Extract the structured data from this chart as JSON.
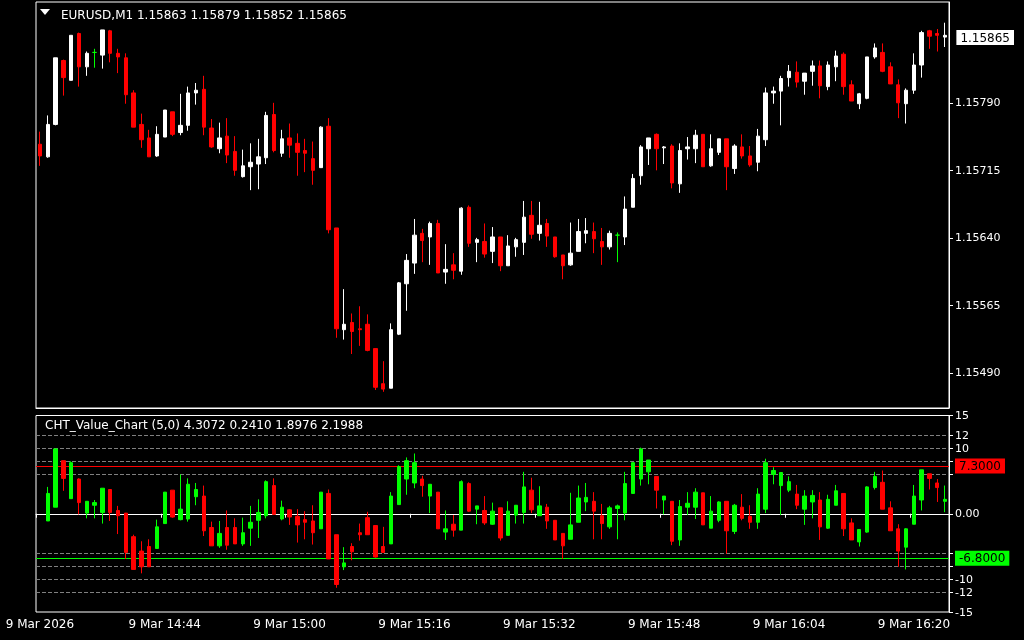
{
  "chart_data": [
    {
      "type": "candlestick",
      "title": "EURUSD,M1 1.15863 1.15879 1.15852 1.15865",
      "categories": [
        null,
        null,
        null,
        null,
        null,
        null,
        null,
        null,
        null,
        null,
        null,
        null,
        null,
        null,
        null,
        null,
        null,
        null,
        null,
        null,
        null,
        null,
        null,
        null,
        null,
        null,
        null,
        null,
        null,
        null,
        null,
        null,
        null,
        null,
        null,
        null,
        null,
        null,
        null,
        null,
        null,
        null,
        null,
        null,
        null,
        null,
        null,
        null,
        null,
        null,
        null,
        null,
        null,
        null,
        null,
        null,
        null,
        null,
        null,
        null,
        null,
        null,
        null,
        null,
        null,
        null,
        null,
        null,
        null,
        null,
        null,
        null,
        null,
        null,
        null,
        null,
        null,
        null,
        null,
        null,
        null,
        null,
        null,
        null,
        null,
        null,
        null,
        null,
        null,
        null,
        null,
        null,
        null,
        null,
        null,
        null,
        null,
        null,
        null,
        null,
        null,
        null,
        null,
        null,
        null,
        null,
        null,
        null,
        null,
        null,
        null,
        null,
        null,
        null,
        null,
        null,
        null
      ],
      "ohlc": [
        [
          1.15744,
          1.15758,
          1.1572,
          1.15731
        ],
        [
          1.1573,
          1.15776,
          1.15729,
          1.15766
        ],
        [
          1.15766,
          1.1584,
          1.15765,
          1.1584
        ],
        [
          1.15837,
          1.15838,
          1.15798,
          1.15818
        ],
        [
          1.15815,
          1.15865,
          1.15815,
          1.15865
        ],
        [
          1.15867,
          1.15868,
          1.15808,
          1.1583
        ],
        [
          1.1583,
          1.15847,
          1.1582,
          1.15845
        ],
        [
          1.15846,
          1.1585,
          1.15829,
          1.15846
        ],
        [
          1.15843,
          1.15871,
          1.15828,
          1.15871
        ],
        [
          1.1587,
          1.15871,
          1.15835,
          1.15845
        ],
        [
          1.15845,
          1.1585,
          1.15823,
          1.15841
        ],
        [
          1.1584,
          1.15845,
          1.15789,
          1.15799
        ],
        [
          1.15801,
          1.15804,
          1.15763,
          1.15763
        ],
        [
          1.15766,
          1.15778,
          1.1574,
          1.15749
        ],
        [
          1.15751,
          1.1576,
          1.1573,
          1.1573
        ],
        [
          1.15731,
          1.15764,
          1.1573,
          1.15755
        ],
        [
          1.15752,
          1.15782,
          1.15752,
          1.15782
        ],
        [
          1.1578,
          1.1578,
          1.15753,
          1.15755
        ],
        [
          1.15757,
          1.158,
          1.15754,
          1.15765
        ],
        [
          1.15765,
          1.15808,
          1.15759,
          1.15801
        ],
        [
          1.15801,
          1.15812,
          1.15788,
          1.15804
        ],
        [
          1.15805,
          1.1582,
          1.15754,
          1.15763
        ],
        [
          1.15762,
          1.15772,
          1.1574,
          1.15741
        ],
        [
          1.15739,
          1.15768,
          1.15734,
          1.15751
        ],
        [
          1.15753,
          1.15773,
          1.15723,
          1.15732
        ],
        [
          1.15736,
          1.15753,
          1.15709,
          1.15715
        ],
        [
          1.15708,
          1.15738,
          1.15707,
          1.1572
        ],
        [
          1.15719,
          1.15745,
          1.15693,
          1.15724
        ],
        [
          1.15722,
          1.1575,
          1.15694,
          1.1573
        ],
        [
          1.15729,
          1.1578,
          1.15722,
          1.15776
        ],
        [
          1.15777,
          1.1579,
          1.15735,
          1.15737
        ],
        [
          1.15734,
          1.1576,
          1.1573,
          1.1575
        ],
        [
          1.15751,
          1.15767,
          1.15729,
          1.15743
        ],
        [
          1.15745,
          1.15756,
          1.15709,
          1.15735
        ],
        [
          1.15737,
          1.1575,
          1.15713,
          1.15734
        ],
        [
          1.15728,
          1.15747,
          1.15699,
          1.15715
        ],
        [
          1.15718,
          1.15764,
          1.15718,
          1.15763
        ],
        [
          1.15764,
          1.15773,
          1.15645,
          1.15649
        ],
        [
          1.15651,
          1.15651,
          1.15529,
          1.15539
        ],
        [
          1.15538,
          1.15583,
          1.15527,
          1.15544
        ],
        [
          1.15546,
          1.15556,
          1.15511,
          1.15536
        ],
        [
          1.15539,
          1.15564,
          1.1552,
          1.15538
        ],
        [
          1.15544,
          1.15555,
          1.15514,
          1.15515
        ],
        [
          1.15517,
          1.15517,
          1.15471,
          1.15474
        ],
        [
          1.15478,
          1.15503,
          1.15469,
          1.15472
        ],
        [
          1.15473,
          1.15545,
          1.15473,
          1.15538
        ],
        [
          1.15533,
          1.15591,
          1.15532,
          1.1559
        ],
        [
          1.15589,
          1.15622,
          1.15559,
          1.15615
        ],
        [
          1.15612,
          1.15661,
          1.156,
          1.15643
        ],
        [
          1.15645,
          1.1565,
          1.15613,
          1.15637
        ],
        [
          1.15641,
          1.15658,
          1.1561,
          1.15656
        ],
        [
          1.15656,
          1.1566,
          1.15601,
          1.15601
        ],
        [
          1.15602,
          1.15633,
          1.15589,
          1.15605
        ],
        [
          1.1561,
          1.15623,
          1.15594,
          1.15604
        ],
        [
          1.15603,
          1.15674,
          1.15599,
          1.15673
        ],
        [
          1.15674,
          1.15676,
          1.1563,
          1.15634
        ],
        [
          1.15635,
          1.1564,
          1.15613,
          1.15638
        ],
        [
          1.15636,
          1.15656,
          1.15618,
          1.15622
        ],
        [
          1.15625,
          1.15652,
          1.15612,
          1.15641
        ],
        [
          1.15641,
          1.15641,
          1.15603,
          1.15609
        ],
        [
          1.15609,
          1.15643,
          1.15609,
          1.15631
        ],
        [
          1.1563,
          1.1564,
          1.15619,
          1.15638
        ],
        [
          1.15635,
          1.15681,
          1.15621,
          1.15663
        ],
        [
          1.15665,
          1.15681,
          1.15639,
          1.15644
        ],
        [
          1.15645,
          1.1568,
          1.15637,
          1.15654
        ],
        [
          1.15656,
          1.15661,
          1.1563,
          1.15642
        ],
        [
          1.15641,
          1.15641,
          1.15618,
          1.15619
        ],
        [
          1.15621,
          1.15621,
          1.15594,
          1.15609
        ],
        [
          1.1561,
          1.15657,
          1.15609,
          1.15623
        ],
        [
          1.15625,
          1.15661,
          1.15625,
          1.15647
        ],
        [
          1.15645,
          1.15662,
          1.15634,
          1.15648
        ],
        [
          1.15647,
          1.15657,
          1.15623,
          1.15639
        ],
        [
          1.15636,
          1.15651,
          1.1561,
          1.1563
        ],
        [
          1.1563,
          1.15648,
          1.15627,
          1.15645
        ],
        [
          1.15643,
          1.15646,
          1.15613,
          1.15643
        ],
        [
          1.15641,
          1.15686,
          1.15632,
          1.15672
        ],
        [
          1.15674,
          1.15711,
          1.15674,
          1.15706
        ],
        [
          1.15709,
          1.15743,
          1.15699,
          1.15741
        ],
        [
          1.15739,
          1.15751,
          1.15721,
          1.15751
        ],
        [
          1.15755,
          1.15756,
          1.15715,
          1.15739
        ],
        [
          1.1574,
          1.15742,
          1.15722,
          1.15741
        ],
        [
          1.15742,
          1.15744,
          1.15695,
          1.15701
        ],
        [
          1.157,
          1.15745,
          1.1569,
          1.15737
        ],
        [
          1.15739,
          1.15752,
          1.15727,
          1.15741
        ],
        [
          1.15739,
          1.1576,
          1.15723,
          1.15754
        ],
        [
          1.15755,
          1.15755,
          1.15719,
          1.15719
        ],
        [
          1.1572,
          1.15755,
          1.15719,
          1.15739
        ],
        [
          1.15735,
          1.1575,
          1.15732,
          1.1575
        ],
        [
          1.1575,
          1.1575,
          1.15693,
          1.15719
        ],
        [
          1.15717,
          1.15744,
          1.15711,
          1.15742
        ],
        [
          1.15741,
          1.15755,
          1.15728,
          1.15731
        ],
        [
          1.15731,
          1.15742,
          1.15719,
          1.15721
        ],
        [
          1.15724,
          1.15761,
          1.15714,
          1.15753
        ],
        [
          1.15749,
          1.15807,
          1.15742,
          1.15801
        ],
        [
          1.15801,
          1.15808,
          1.15789,
          1.15803
        ],
        [
          1.15803,
          1.1582,
          1.15765,
          1.15817
        ],
        [
          1.15818,
          1.15832,
          1.15808,
          1.15825
        ],
        [
          1.15824,
          1.15836,
          1.15807,
          1.15813
        ],
        [
          1.15814,
          1.15823,
          1.15799,
          1.15823
        ],
        [
          1.15825,
          1.15837,
          1.15809,
          1.15831
        ],
        [
          1.15831,
          1.15837,
          1.15795,
          1.15809
        ],
        [
          1.15808,
          1.15836,
          1.15804,
          1.15832
        ],
        [
          1.1583,
          1.15848,
          1.15814,
          1.15842
        ],
        [
          1.15844,
          1.15846,
          1.15799,
          1.15808
        ],
        [
          1.1581,
          1.15815,
          1.15792,
          1.15792
        ],
        [
          1.15789,
          1.15801,
          1.15783,
          1.158
        ],
        [
          1.15795,
          1.15841,
          1.15794,
          1.15841
        ],
        [
          1.15841,
          1.15856,
          1.15839,
          1.15851
        ],
        [
          1.15846,
          1.15856,
          1.15824,
          1.15825
        ],
        [
          1.1583,
          1.15835,
          1.15811,
          1.15811
        ],
        [
          1.1581,
          1.15816,
          1.15773,
          1.1579
        ],
        [
          1.15789,
          1.15806,
          1.15767,
          1.15804
        ],
        [
          1.15804,
          1.15845,
          1.158,
          1.15832
        ],
        [
          1.15832,
          1.1587,
          1.15818,
          1.15868
        ],
        [
          1.1587,
          1.15871,
          1.1585,
          1.15864
        ],
        [
          1.15867,
          1.15872,
          1.15847,
          1.15865
        ],
        [
          1.15863,
          1.15879,
          1.15852,
          1.15865
        ]
      ],
      "colors": [
        "#ff0000",
        "#ffffff",
        "#ffffff",
        "#ff0000",
        "#ffffff",
        "#ff0000",
        "#ffffff",
        "#00ff00",
        "#ffffff",
        "#ff0000",
        "#ff0000",
        "#ff0000",
        "#ff0000",
        "#ff0000",
        "#ff0000",
        "#ffffff",
        "#ffffff",
        "#ff0000",
        "#ffffff",
        "#ffffff",
        "#ffffff",
        "#ff0000",
        "#ff0000",
        "#ffffff",
        "#ff0000",
        "#ff0000",
        "#ffffff",
        "#ffffff",
        "#ffffff",
        "#ffffff",
        "#ff0000",
        "#ffffff",
        "#ff0000",
        "#ff0000",
        "#ff0000",
        "#ff0000",
        "#ffffff",
        "#ff0000",
        "#ff0000",
        "#ffffff",
        "#ff0000",
        "#ff0000",
        "#ff0000",
        "#ff0000",
        "#ff0000",
        "#ffffff",
        "#ffffff",
        "#ffffff",
        "#ffffff",
        "#ff0000",
        "#ffffff",
        "#ff0000",
        "#ffffff",
        "#ff0000",
        "#ffffff",
        "#ff0000",
        "#ffffff",
        "#ff0000",
        "#ffffff",
        "#ff0000",
        "#ffffff",
        "#ffffff",
        "#ffffff",
        "#ff0000",
        "#ffffff",
        "#ff0000",
        "#ff0000",
        "#ff0000",
        "#ffffff",
        "#ffffff",
        "#ffffff",
        "#ff0000",
        "#ff0000",
        "#ffffff",
        "#00ff00",
        "#ffffff",
        "#ffffff",
        "#ffffff",
        "#ffffff",
        "#ff0000",
        "#ffffff",
        "#ff0000",
        "#ffffff",
        "#ffffff",
        "#ffffff",
        "#ff0000",
        "#ffffff",
        "#ffffff",
        "#ff0000",
        "#ffffff",
        "#ff0000",
        "#ff0000",
        "#ffffff",
        "#ffffff",
        "#ffffff",
        "#ffffff",
        "#ffffff",
        "#ff0000",
        "#ffffff",
        "#ffffff",
        "#ff0000",
        "#ffffff",
        "#ffffff",
        "#ff0000",
        "#ff0000",
        "#ffffff",
        "#ffffff",
        "#ffffff",
        "#ff0000",
        "#ff0000",
        "#ff0000",
        "#ffffff",
        "#ffffff",
        "#ffffff",
        "#ff0000",
        "#ff0000",
        "#ffffff"
      ],
      "ylim": [
        1.15451,
        1.15902
      ],
      "yticks": [
        {
          "value": 1.1579,
          "label": "1.15790"
        },
        1.15715,
        {
          "value": 1.1564,
          "label": "1.15640"
        },
        1.15565,
        {
          "value": 1.1549,
          "label": "1.15490"
        }
      ],
      "annotations": [
        "1.15865"
      ],
      "tick_labels": "y"
    },
    {
      "type": "candlestick",
      "title": "CHT_Value_Chart (5,0) 4.3072 0.2410 1.8976 2.1988",
      "categories": [
        "9 Mar 2026",
        null,
        null,
        null,
        null,
        null,
        null,
        null,
        null,
        null,
        null,
        null,
        null,
        null,
        null,
        null,
        "9 Mar 14:44",
        null,
        null,
        null,
        null,
        null,
        null,
        null,
        null,
        null,
        null,
        null,
        null,
        null,
        null,
        null,
        "9 Mar 15:00",
        null,
        null,
        null,
        null,
        null,
        null,
        null,
        null,
        null,
        null,
        null,
        null,
        null,
        null,
        null,
        "9 Mar 15:16",
        null,
        null,
        null,
        null,
        null,
        null,
        null,
        null,
        null,
        null,
        null,
        null,
        null,
        null,
        null,
        "9 Mar 15:32",
        null,
        null,
        null,
        null,
        null,
        null,
        null,
        null,
        null,
        null,
        null,
        null,
        null,
        null,
        null,
        "9 Mar 15:48",
        null,
        null,
        null,
        null,
        null,
        null,
        null,
        null,
        null,
        null,
        null,
        null,
        null,
        null,
        null,
        "9 Mar 16:04",
        null,
        null,
        null,
        null,
        null,
        null,
        null,
        null,
        null,
        null,
        null,
        null,
        null,
        null,
        null,
        "9 Mar 16:20",
        null,
        null,
        null,
        null
      ],
      "ohlc": [
        null,
        [
          -1.1,
          4.1,
          -1.1,
          3.1
        ],
        [
          1.0,
          9.9,
          1.0,
          9.9
        ],
        [
          8.1,
          8.1,
          3.5,
          5.4
        ],
        [
          2.3,
          8.0,
          2.3,
          7.8
        ],
        [
          5.3,
          5.4,
          -0.1,
          1.7
        ],
        [
          0.1,
          1.9,
          -0.7,
          1.9
        ],
        [
          1.3,
          2.1,
          -0.7,
          1.7
        ],
        [
          0.2,
          3.9,
          -1.5,
          3.9
        ],
        [
          3.7,
          3.7,
          -1.1,
          0.2
        ],
        [
          0.5,
          1.2,
          -3.1,
          -0.3
        ],
        [
          0.1,
          0.1,
          -6.9,
          -5.9
        ],
        [
          -3.5,
          -3.2,
          -8.5,
          -8.5
        ],
        [
          -5.7,
          -4.2,
          -9.1,
          -8.1
        ],
        [
          -5.0,
          -3.9,
          -8.1,
          -8.1
        ],
        [
          -5.3,
          -0.9,
          -5.3,
          -2.0
        ],
        [
          -1.5,
          3.3,
          -1.5,
          3.3
        ],
        [
          3.6,
          3.6,
          -0.6,
          -0.5
        ],
        [
          -0.9,
          6.0,
          -1.0,
          0.7
        ],
        [
          -0.8,
          5.4,
          -1.2,
          4.5
        ],
        [
          2.6,
          4.7,
          1.3,
          3.7
        ],
        [
          2.7,
          4.3,
          -3.4,
          -2.6
        ],
        [
          -2.1,
          -1.2,
          -4.9,
          -4.9
        ],
        [
          -4.9,
          -1.1,
          -5.2,
          -3.0
        ],
        [
          -2.1,
          0.5,
          -5.5,
          -4.8
        ],
        [
          -2.1,
          -0.7,
          -4.6,
          -4.6
        ],
        [
          -4.6,
          -0.6,
          -4.9,
          -2.9
        ],
        [
          -2.2,
          1.2,
          -4.9,
          -1.3
        ],
        [
          -1.0,
          2.2,
          -3.7,
          0.2
        ],
        [
          -0.3,
          5.1,
          -0.7,
          4.9
        ],
        [
          4.3,
          5.4,
          -0.1,
          -0.1
        ],
        [
          -0.8,
          2.0,
          -1.0,
          1.0
        ],
        [
          0.6,
          0.7,
          -1.7,
          -0.5
        ],
        [
          -0.4,
          0.7,
          -4.4,
          -1.7
        ],
        [
          -0.9,
          0.4,
          -3.9,
          -1.3
        ],
        [
          -1.1,
          1.3,
          -4.7,
          -2.9
        ],
        [
          -2.3,
          3.3,
          -2.3,
          3.3
        ],
        [
          3.1,
          3.7,
          -6.9,
          -6.9
        ],
        [
          -3.2,
          -3.2,
          -11.3,
          -10.8
        ],
        [
          -8.1,
          -5.1,
          -8.6,
          -7.5
        ],
        [
          -5.0,
          -4.5,
          -7.1,
          -5.8
        ],
        [
          -2.9,
          -1.5,
          -4.1,
          -3.2
        ],
        [
          -0.6,
          0.3,
          -3.2,
          -3.2
        ],
        [
          -1.8,
          -1.8,
          -6.7,
          -6.6
        ],
        [
          -5.0,
          -2.0,
          -6.0,
          -5.9
        ],
        [
          -4.6,
          3.3,
          -4.6,
          2.7
        ],
        [
          1.4,
          7.4,
          1.4,
          7.2
        ],
        [
          5.3,
          8.6,
          2.9,
          8.1
        ],
        [
          4.7,
          9.2,
          3.9,
          7.8
        ],
        [
          5.3,
          5.8,
          2.6,
          4.3
        ],
        [
          2.7,
          4.5,
          0.1,
          4.5
        ],
        [
          3.3,
          3.3,
          -2.3,
          -2.3
        ],
        [
          -2.8,
          0.5,
          -4.0,
          -2.3
        ],
        [
          -1.6,
          -0.2,
          -3.5,
          -2.5
        ],
        [
          -2.5,
          5.1,
          -2.5,
          4.9
        ],
        [
          4.6,
          4.8,
          0.3,
          0.4
        ],
        [
          0.7,
          1.2,
          -1.6,
          1.2
        ],
        [
          0.5,
          2.7,
          -1.7,
          -1.4
        ],
        [
          -1.6,
          1.7,
          -1.7,
          0.4
        ],
        [
          0.9,
          0.9,
          -4.1,
          -3.7
        ],
        [
          -3.3,
          1.9,
          -3.3,
          0.4
        ],
        [
          -0.2,
          1.3,
          -1.5,
          1.3
        ],
        [
          0.2,
          6.4,
          -1.5,
          4.1
        ],
        [
          3.6,
          5.5,
          0.1,
          0.6
        ],
        [
          -0.3,
          4.2,
          -0.3,
          1.2
        ],
        [
          1.0,
          1.5,
          -2.3,
          -1.1
        ],
        [
          -1.0,
          -1.0,
          -4.0,
          -4.0
        ],
        [
          -3.0,
          -3.0,
          -6.9,
          -4.9
        ],
        [
          -3.9,
          3.2,
          -3.9,
          -1.7
        ],
        [
          -1.3,
          4.3,
          -1.3,
          2.4
        ],
        [
          1.8,
          4.7,
          0.4,
          2.5
        ],
        [
          1.9,
          3.3,
          -3.9,
          0.4
        ],
        [
          -0.3,
          1.5,
          -3.9,
          -1.5
        ],
        [
          -2.0,
          1.2,
          -2.3,
          0.9
        ],
        [
          0.8,
          1.4,
          -3.9,
          1.2
        ],
        [
          0.1,
          6.4,
          -1.0,
          4.6
        ],
        [
          3.1,
          7.8,
          3.1,
          7.8
        ],
        [
          5.3,
          10.1,
          4.3,
          9.9
        ],
        [
          6.4,
          8.2,
          4.5,
          8.2
        ],
        [
          5.7,
          5.7,
          0.8,
          3.6
        ],
        [
          2.1,
          2.7,
          -0.1,
          2.7
        ],
        [
          1.9,
          1.9,
          -4.8,
          -4.2
        ],
        [
          -4.0,
          2.1,
          -4.9,
          1.1
        ],
        [
          1.0,
          3.3,
          -0.2,
          1.6
        ],
        [
          1.0,
          3.9,
          -0.8,
          3.3
        ],
        [
          3.2,
          3.2,
          -1.7,
          -1.7
        ],
        [
          -2.2,
          2.7,
          -2.2,
          0.4
        ],
        [
          -1.0,
          1.9,
          -1.3,
          1.8
        ],
        [
          1.9,
          1.9,
          -6.1,
          -2.6
        ],
        [
          -2.7,
          1.5,
          -3.1,
          1.3
        ],
        [
          1.0,
          3.0,
          -1.0,
          -0.7
        ],
        [
          -0.4,
          1.3,
          -2.3,
          -1.3
        ],
        [
          -1.3,
          3.9,
          -2.3,
          3.0
        ],
        [
          0.7,
          8.4,
          0.1,
          7.8
        ],
        [
          6.0,
          7.1,
          4.5,
          6.6
        ],
        [
          4.3,
          6.3,
          -0.2,
          6.3
        ],
        [
          3.6,
          5.7,
          3.3,
          4.9
        ],
        [
          3.0,
          4.4,
          0.7,
          1.3
        ],
        [
          0.7,
          3.6,
          -1.7,
          2.7
        ],
        [
          1.8,
          3.6,
          -0.7,
          2.8
        ],
        [
          2.1,
          3.3,
          -4.0,
          -2.0
        ],
        [
          -2.2,
          2.9,
          -2.3,
          2.2
        ],
        [
          1.3,
          4.4,
          1.3,
          3.5
        ],
        [
          3.1,
          3.1,
          -3.4,
          -2.3
        ],
        [
          -1.4,
          -0.7,
          -4.0,
          -4.0
        ],
        [
          -4.3,
          -2.4,
          -5.0,
          -2.4
        ],
        [
          -2.8,
          4.2,
          -2.9,
          4.1
        ],
        [
          4.0,
          6.4,
          3.7,
          5.7
        ],
        [
          4.8,
          6.6,
          0.7,
          0.7
        ],
        [
          0.9,
          1.9,
          -2.6,
          -2.6
        ],
        [
          -2.3,
          -1.6,
          -8.1,
          -5.7
        ],
        [
          -5.1,
          -2.2,
          -8.5,
          -2.3
        ],
        [
          -1.6,
          4.4,
          -1.6,
          2.7
        ],
        [
          2.1,
          6.7,
          0.5,
          6.7
        ],
        [
          6.1,
          6.1,
          3.7,
          5.4
        ],
        [
          4.7,
          5.3,
          1.8,
          4.0
        ],
        [
          1.8976,
          4.3072,
          0.241,
          2.1988
        ]
      ],
      "colors": [
        null,
        "#00ff00",
        "#00ff00",
        "#ff0000",
        "#00ff00",
        "#ff0000",
        "#00ff00",
        "#00ff00",
        "#00ff00",
        "#ff0000",
        "#ff0000",
        "#ff0000",
        "#ff0000",
        "#ff0000",
        "#ff0000",
        "#00ff00",
        "#00ff00",
        "#ff0000",
        "#00ff00",
        "#00ff00",
        "#00ff00",
        "#ff0000",
        "#ff0000",
        "#00ff00",
        "#ff0000",
        "#ff0000",
        "#00ff00",
        "#00ff00",
        "#00ff00",
        "#00ff00",
        "#ff0000",
        "#00ff00",
        "#ff0000",
        "#ff0000",
        "#ff0000",
        "#ff0000",
        "#00ff00",
        "#ff0000",
        "#ff0000",
        "#00ff00",
        "#ff0000",
        "#ff0000",
        "#ff0000",
        "#ff0000",
        "#ff0000",
        "#00ff00",
        "#00ff00",
        "#00ff00",
        "#00ff00",
        "#ff0000",
        "#00ff00",
        "#ff0000",
        "#00ff00",
        "#ff0000",
        "#00ff00",
        "#ff0000",
        "#00ff00",
        "#ff0000",
        "#00ff00",
        "#ff0000",
        "#00ff00",
        "#00ff00",
        "#00ff00",
        "#ff0000",
        "#00ff00",
        "#ff0000",
        "#ff0000",
        "#ff0000",
        "#00ff00",
        "#00ff00",
        "#00ff00",
        "#ff0000",
        "#ff0000",
        "#00ff00",
        "#00ff00",
        "#00ff00",
        "#00ff00",
        "#00ff00",
        "#00ff00",
        "#ff0000",
        "#00ff00",
        "#ff0000",
        "#00ff00",
        "#00ff00",
        "#00ff00",
        "#ff0000",
        "#00ff00",
        "#00ff00",
        "#ff0000",
        "#00ff00",
        "#ff0000",
        "#ff0000",
        "#00ff00",
        "#00ff00",
        "#00ff00",
        "#00ff00",
        "#00ff00",
        "#ff0000",
        "#00ff00",
        "#00ff00",
        "#ff0000",
        "#00ff00",
        "#00ff00",
        "#ff0000",
        "#ff0000",
        "#00ff00",
        "#00ff00",
        "#00ff00",
        "#ff0000",
        "#ff0000",
        "#ff0000",
        "#00ff00",
        "#00ff00",
        "#00ff00",
        "#ff0000",
        "#ff0000",
        "#00ff00"
      ],
      "ylim": [
        -15,
        15
      ],
      "yticks": [
        15,
        12,
        10,
        {
          "value": 8,
          "label": null
        },
        {
          "value": 6,
          "label": null
        },
        {
          "value": 0,
          "label": "0.00"
        },
        {
          "value": -6,
          "label": null
        },
        {
          "value": -8,
          "label": null
        },
        -10,
        -12,
        -15
      ],
      "ref_lines": [
        {
          "axis": "y",
          "value": 12,
          "label": null,
          "color": "#808080",
          "line_style": "dashed"
        },
        {
          "axis": "y",
          "value": 10,
          "label": null,
          "color": "#808080",
          "line_style": "dashed"
        },
        {
          "axis": "y",
          "value": 8,
          "label": null,
          "color": "#808080",
          "line_style": "dashed"
        },
        {
          "axis": "y",
          "value": 6,
          "label": null,
          "color": "#808080",
          "line_style": "dashed"
        },
        {
          "axis": "y",
          "value": -6,
          "label": null,
          "color": "#808080",
          "line_style": "dashed"
        },
        {
          "axis": "y",
          "value": -8,
          "label": null,
          "color": "#808080",
          "line_style": "dashed"
        },
        {
          "axis": "y",
          "value": -10,
          "label": null,
          "color": "#808080",
          "line_style": "dashed"
        },
        {
          "axis": "y",
          "value": -12,
          "label": null,
          "color": "#808080",
          "line_style": "dashed"
        },
        {
          "axis": "y",
          "value": 7.3,
          "label": "7.3000",
          "color": "#ff0000",
          "line_style": "solid"
        },
        {
          "axis": "y",
          "value": -6.8,
          "label": "-6.8000",
          "color": "#00ff00",
          "line_style": "solid"
        }
      ]
    }
  ]
}
